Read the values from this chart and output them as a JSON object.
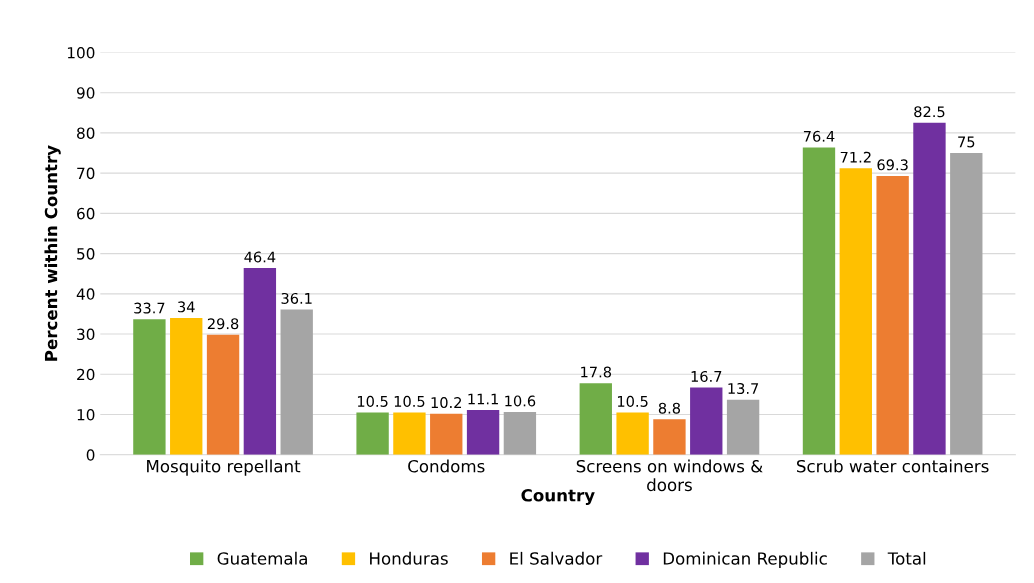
{
  "chart_data": {
    "type": "bar",
    "xlabel": "Country",
    "ylabel": "Percent within Country",
    "categories": [
      "Mosquito repellant",
      "Condoms",
      "Screens on windows & doors",
      "Scrub water containers"
    ],
    "series": [
      {
        "name": "Guatemala",
        "color": "#70ad47",
        "values": [
          33.7,
          10.5,
          17.8,
          76.4
        ]
      },
      {
        "name": "Honduras",
        "color": "#ffc000",
        "values": [
          34,
          10.5,
          10.5,
          71.2
        ]
      },
      {
        "name": "El Salvador",
        "color": "#ed7d31",
        "values": [
          29.8,
          10.2,
          8.8,
          69.3
        ]
      },
      {
        "name": "Dominican Republic",
        "color": "#7030a0",
        "values": [
          46.4,
          11.1,
          16.7,
          82.5
        ]
      },
      {
        "name": "Total",
        "color": "#a5a5a5",
        "values": [
          36.1,
          10.6,
          13.7,
          75
        ]
      }
    ],
    "ylim": [
      0,
      100
    ],
    "yticks": [
      0,
      10,
      20,
      30,
      40,
      50,
      60,
      70,
      80,
      90,
      100
    ],
    "grid": "y",
    "legend": "bottom",
    "data_labels": true
  }
}
